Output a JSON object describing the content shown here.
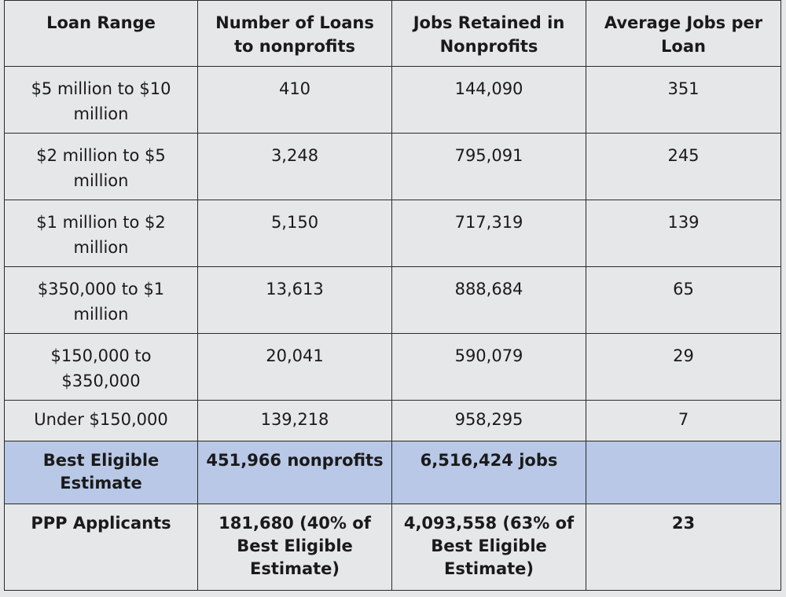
{
  "table": {
    "headers": [
      "Loan Range",
      "Number of Loans to nonprofits",
      "Jobs Retained in Nonprofits",
      "Average Jobs per Loan"
    ],
    "rows": [
      [
        "$5 million to $10 million",
        "410",
        "144,090",
        "351"
      ],
      [
        "$2 million to $5 million",
        "3,248",
        "795,091",
        "245"
      ],
      [
        "$1 million to $2 million",
        "5,150",
        "717,319",
        "139"
      ],
      [
        "$350,000 to $1 million",
        "13,613",
        "888,684",
        "65"
      ],
      [
        "$150,000 to $350,000",
        "20,041",
        "590,079",
        "29"
      ],
      [
        "Under $150,000",
        "139,218",
        "958,295",
        "7"
      ]
    ],
    "estimate_row": [
      "Best Eligible Estimate",
      "451,966 nonprofits",
      "6,516,424 jobs",
      ""
    ],
    "ppp_row": [
      "PPP Applicants",
      "181,680 (40% of Best Eligible Estimate)",
      "4,093,558 (63% of Best Eligible Estimate)",
      "23"
    ]
  },
  "colors": {
    "background": "#e6e7e9",
    "estimate_highlight": "#b8c8e6",
    "border": "#2a2a2a"
  }
}
